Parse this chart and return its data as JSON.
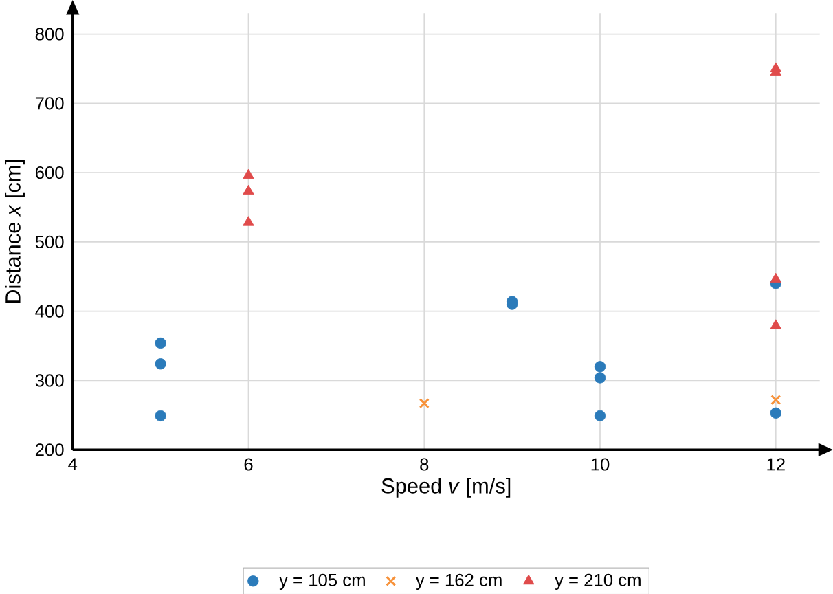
{
  "chart_data": {
    "type": "scatter",
    "xlabel": "Speed *v* [m/s]",
    "ylabel": "Distance *x* [cm]",
    "xlim": [
      4,
      12.5
    ],
    "ylim": [
      200,
      830
    ],
    "xticks": [
      4,
      6,
      8,
      10,
      12
    ],
    "yticks": [
      200,
      300,
      400,
      500,
      600,
      700,
      800
    ],
    "grid": true,
    "legend": "bottom",
    "series": [
      {
        "name": "y = 105 cm",
        "color": "#2b7bba",
        "marker": "circle",
        "x": [
          5,
          5,
          5,
          9,
          9,
          10,
          10,
          10,
          12,
          12
        ],
        "values": [
          354,
          324,
          249,
          414,
          410,
          320,
          304,
          249,
          440,
          253
        ]
      },
      {
        "name": "y = 162 cm",
        "color": "#f7923a",
        "marker": "cross",
        "x": [
          8,
          12
        ],
        "values": [
          267,
          272
        ]
      },
      {
        "name": "y = 210 cm",
        "color": "#e04b4b",
        "marker": "triangle",
        "x": [
          6,
          6,
          6,
          12,
          12,
          12,
          12
        ],
        "values": [
          596,
          573,
          528,
          750,
          745,
          446,
          379
        ]
      }
    ]
  }
}
